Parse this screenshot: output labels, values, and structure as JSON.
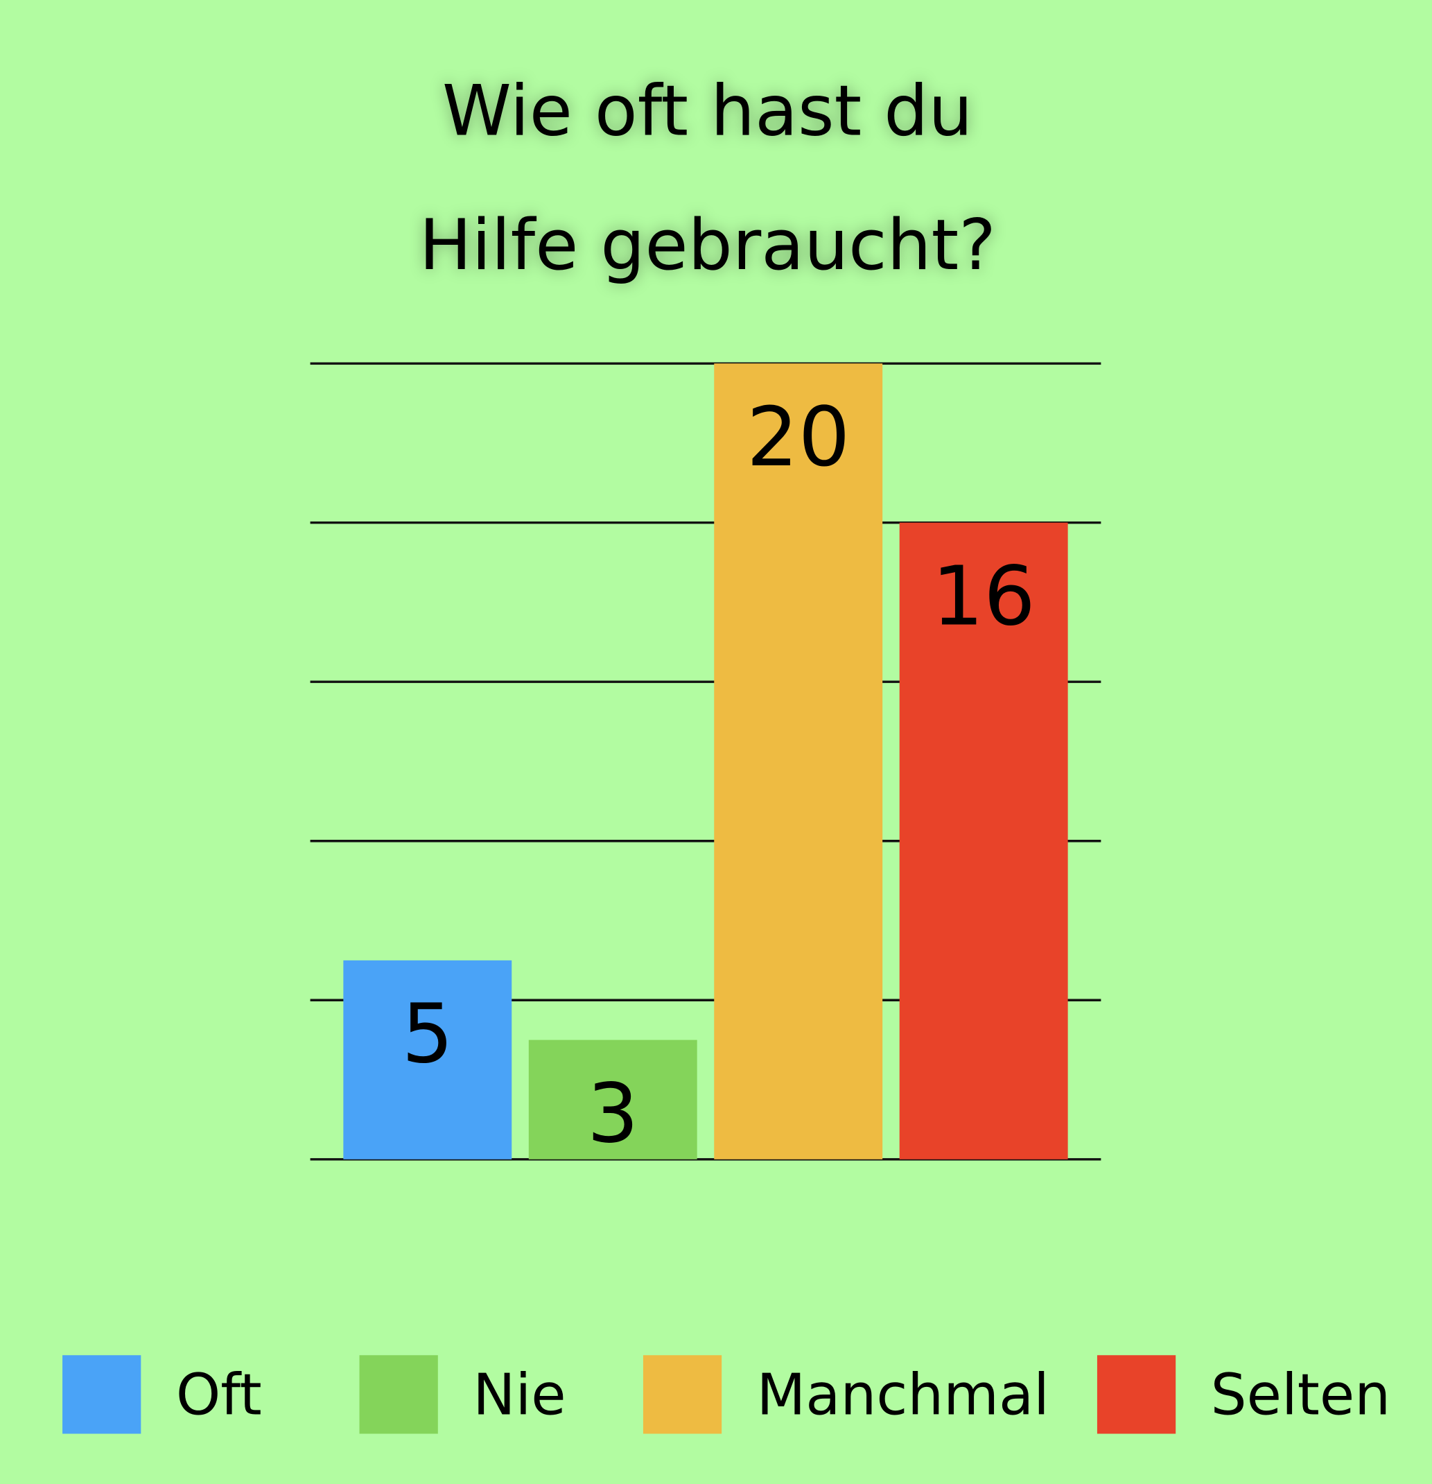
{
  "chart_data": {
    "type": "bar",
    "title": [
      "Wie oft hast du",
      "Hilfe gebraucht?"
    ],
    "categories": [
      "Oft",
      "Nie",
      "Manchmal",
      "Selten"
    ],
    "values": [
      5,
      3,
      20,
      16
    ],
    "colors": [
      "#4aa3f7",
      "#84d45a",
      "#eebb42",
      "#e84329"
    ],
    "ylim": [
      0,
      20
    ],
    "yticks": [
      0,
      4,
      8,
      12,
      16,
      20
    ],
    "grid": true,
    "legend": "bottom"
  }
}
